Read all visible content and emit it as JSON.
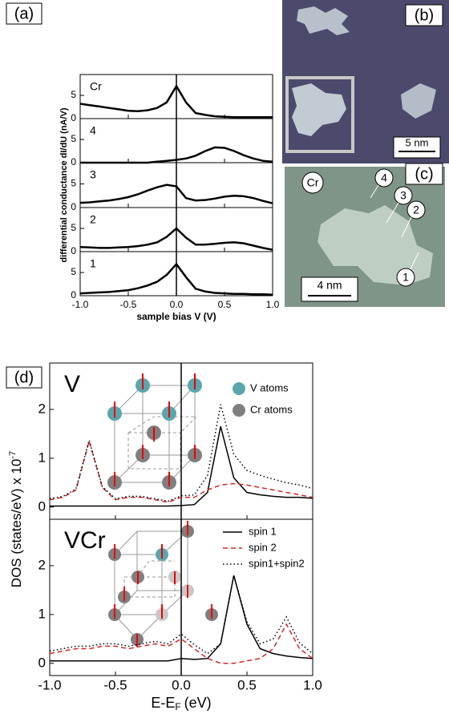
{
  "chart_data": [
    {
      "type": "line",
      "panel": "(a)",
      "ylabel": "differential conductance dI/dU (nA/V)",
      "xlabel": "sample bias V (V)",
      "xlim": [
        -1,
        1
      ],
      "xticks": [
        {
          "value": -1,
          "label": "-1.0"
        },
        -0.5,
        {
          "value": 0,
          "label": "0.0"
        },
        0.5,
        {
          "value": 1,
          "label": "1.0"
        }
      ],
      "x": [
        -1,
        -0.9,
        -0.8,
        -0.7,
        -0.6,
        -0.5,
        -0.4,
        -0.3,
        -0.2,
        -0.1,
        0,
        0.1,
        0.2,
        0.3,
        0.4,
        0.5,
        0.6,
        0.7,
        0.8,
        0.9,
        1
      ],
      "color": "#000000",
      "subplots": [
        {
          "title": "Cr",
          "ylim": [
            0,
            9.5
          ],
          "yticks": [
            0,
            5
          ],
          "values": [
            3.2,
            2.9,
            2.6,
            2.3,
            2.0,
            1.7,
            1.6,
            1.8,
            2.3,
            3.5,
            7.0,
            3.5,
            1.2,
            0.8,
            0.5,
            0.4,
            0.3,
            0.3,
            0.3,
            0.3,
            0.3
          ]
        },
        {
          "title": "4",
          "ylim": [
            0,
            9.5
          ],
          "yticks": [
            0,
            5
          ],
          "values": [
            0,
            0,
            0,
            0,
            0,
            0,
            0,
            0,
            0.2,
            0.4,
            0.6,
            0.9,
            1.5,
            2.5,
            3.3,
            3.2,
            2.5,
            1.6,
            0.9,
            0.4,
            0.2
          ]
        },
        {
          "title": "3",
          "ylim": [
            0,
            9.5
          ],
          "yticks": [
            0,
            5
          ],
          "values": [
            1.0,
            1.1,
            1.3,
            1.5,
            1.8,
            2.2,
            2.8,
            3.6,
            4.3,
            4.8,
            4.5,
            2.0,
            1.5,
            1.6,
            1.9,
            2.3,
            2.5,
            2.4,
            2.0,
            1.4,
            0.9
          ]
        },
        {
          "title": "2",
          "ylim": [
            0,
            9.5
          ],
          "yticks": [
            0,
            5
          ],
          "values": [
            1.0,
            0.9,
            0.8,
            0.8,
            0.9,
            1.0,
            1.2,
            1.5,
            2.0,
            3.2,
            5.0,
            3.0,
            1.5,
            1.5,
            1.7,
            1.9,
            2.0,
            1.8,
            1.3,
            0.8,
            0.4
          ]
        },
        {
          "title": "1",
          "ylim": [
            0,
            9.5
          ],
          "yticks": [
            0,
            5
          ],
          "values": [
            0.5,
            0.6,
            0.7,
            0.8,
            1.0,
            1.2,
            1.6,
            2.2,
            3.0,
            4.5,
            6.8,
            4.0,
            1.5,
            0.9,
            0.6,
            0.5,
            0.4,
            0.4,
            0.3,
            0.3,
            0.2
          ]
        }
      ]
    },
    {
      "type": "line",
      "panel": "(d)",
      "ylabel": [
        "DOS (states/eV) x 10",
        "-7"
      ],
      "xlabel": [
        "E-E",
        "F",
        "(eV)"
      ],
      "xlim": [
        -1,
        1
      ],
      "xticks": [
        {
          "value": -1,
          "label": "-1.0"
        },
        -0.5,
        {
          "value": 0,
          "label": "0.0"
        },
        0.5,
        {
          "value": 1,
          "label": "1.0"
        }
      ],
      "x": [
        -1,
        -0.9,
        -0.8,
        -0.7,
        -0.6,
        -0.5,
        -0.4,
        -0.3,
        -0.2,
        -0.1,
        0,
        0.1,
        0.2,
        0.3,
        0.4,
        0.5,
        0.6,
        0.7,
        0.8,
        0.9,
        1
      ],
      "legend": "upper right",
      "subplots": [
        {
          "title": "V",
          "ylim": [
            -0.25,
            2.95
          ],
          "yticks": [
            0,
            1,
            2
          ],
          "atom_legend": [
            {
              "name": "V atoms",
              "color": "#5aa6ad"
            },
            {
              "name": "Cr atoms",
              "color": "#7f7f7f"
            }
          ],
          "series": [
            {
              "name": "spin 1",
              "color": "#000000",
              "style": "solid",
              "values": [
                0.02,
                0.02,
                0.02,
                0.02,
                0.02,
                0.02,
                0.02,
                0.02,
                0.02,
                0.02,
                0.03,
                0.05,
                0.3,
                1.65,
                0.6,
                0.3,
                0.25,
                0.22,
                0.2,
                0.2,
                0.18
              ]
            },
            {
              "name": "spin 2",
              "color": "#d62728",
              "style": "dashed",
              "values": [
                0.15,
                0.2,
                0.35,
                1.35,
                0.4,
                0.15,
                0.2,
                0.2,
                0.15,
                0.1,
                0.2,
                0.2,
                0.35,
                0.45,
                0.48,
                0.45,
                0.4,
                0.35,
                0.3,
                0.25,
                0.2
              ]
            },
            {
              "name": "spin1+spin2",
              "color": "#000000",
              "style": "dotted",
              "values": [
                0.17,
                0.22,
                0.37,
                1.37,
                0.42,
                0.17,
                0.22,
                0.22,
                0.17,
                0.12,
                0.23,
                0.25,
                0.65,
                2.1,
                1.08,
                0.75,
                0.65,
                0.57,
                0.5,
                0.45,
                0.38
              ]
            }
          ]
        },
        {
          "title": "VCr",
          "ylim": [
            -0.25,
            2.95
          ],
          "yticks": [
            0,
            1,
            2
          ],
          "show_legend": true,
          "series": [
            {
              "name": "spin 1",
              "color": "#000000",
              "style": "solid",
              "values": [
                0.05,
                0.05,
                0.05,
                0.05,
                0.05,
                0.05,
                0.05,
                0.05,
                0.05,
                0.05,
                0.1,
                0.08,
                0.1,
                0.4,
                1.8,
                0.8,
                0.3,
                0.2,
                0.15,
                0.12,
                0.1
              ]
            },
            {
              "name": "spin 2",
              "color": "#d62728",
              "style": "dashed",
              "values": [
                0.2,
                0.25,
                0.3,
                0.3,
                0.35,
                0.35,
                0.3,
                0.35,
                0.4,
                0.35,
                0.5,
                0.3,
                0.1,
                0.0,
                0.0,
                0.05,
                0.1,
                0.3,
                0.8,
                0.3,
                0.1
              ]
            },
            {
              "name": "spin1+spin2",
              "color": "#000000",
              "style": "dotted",
              "values": [
                0.25,
                0.3,
                0.35,
                0.35,
                0.4,
                0.4,
                0.35,
                0.4,
                0.45,
                0.4,
                0.6,
                0.38,
                0.2,
                0.4,
                1.8,
                0.85,
                0.4,
                0.5,
                0.95,
                0.42,
                0.2
              ]
            }
          ]
        }
      ]
    }
  ],
  "images": [
    {
      "label": "(b)",
      "scale_bar": "5 nm"
    },
    {
      "label": "(c)",
      "scale_bar": "4 nm",
      "markers": [
        "Cr",
        "4",
        "3",
        "2",
        "1"
      ]
    }
  ]
}
